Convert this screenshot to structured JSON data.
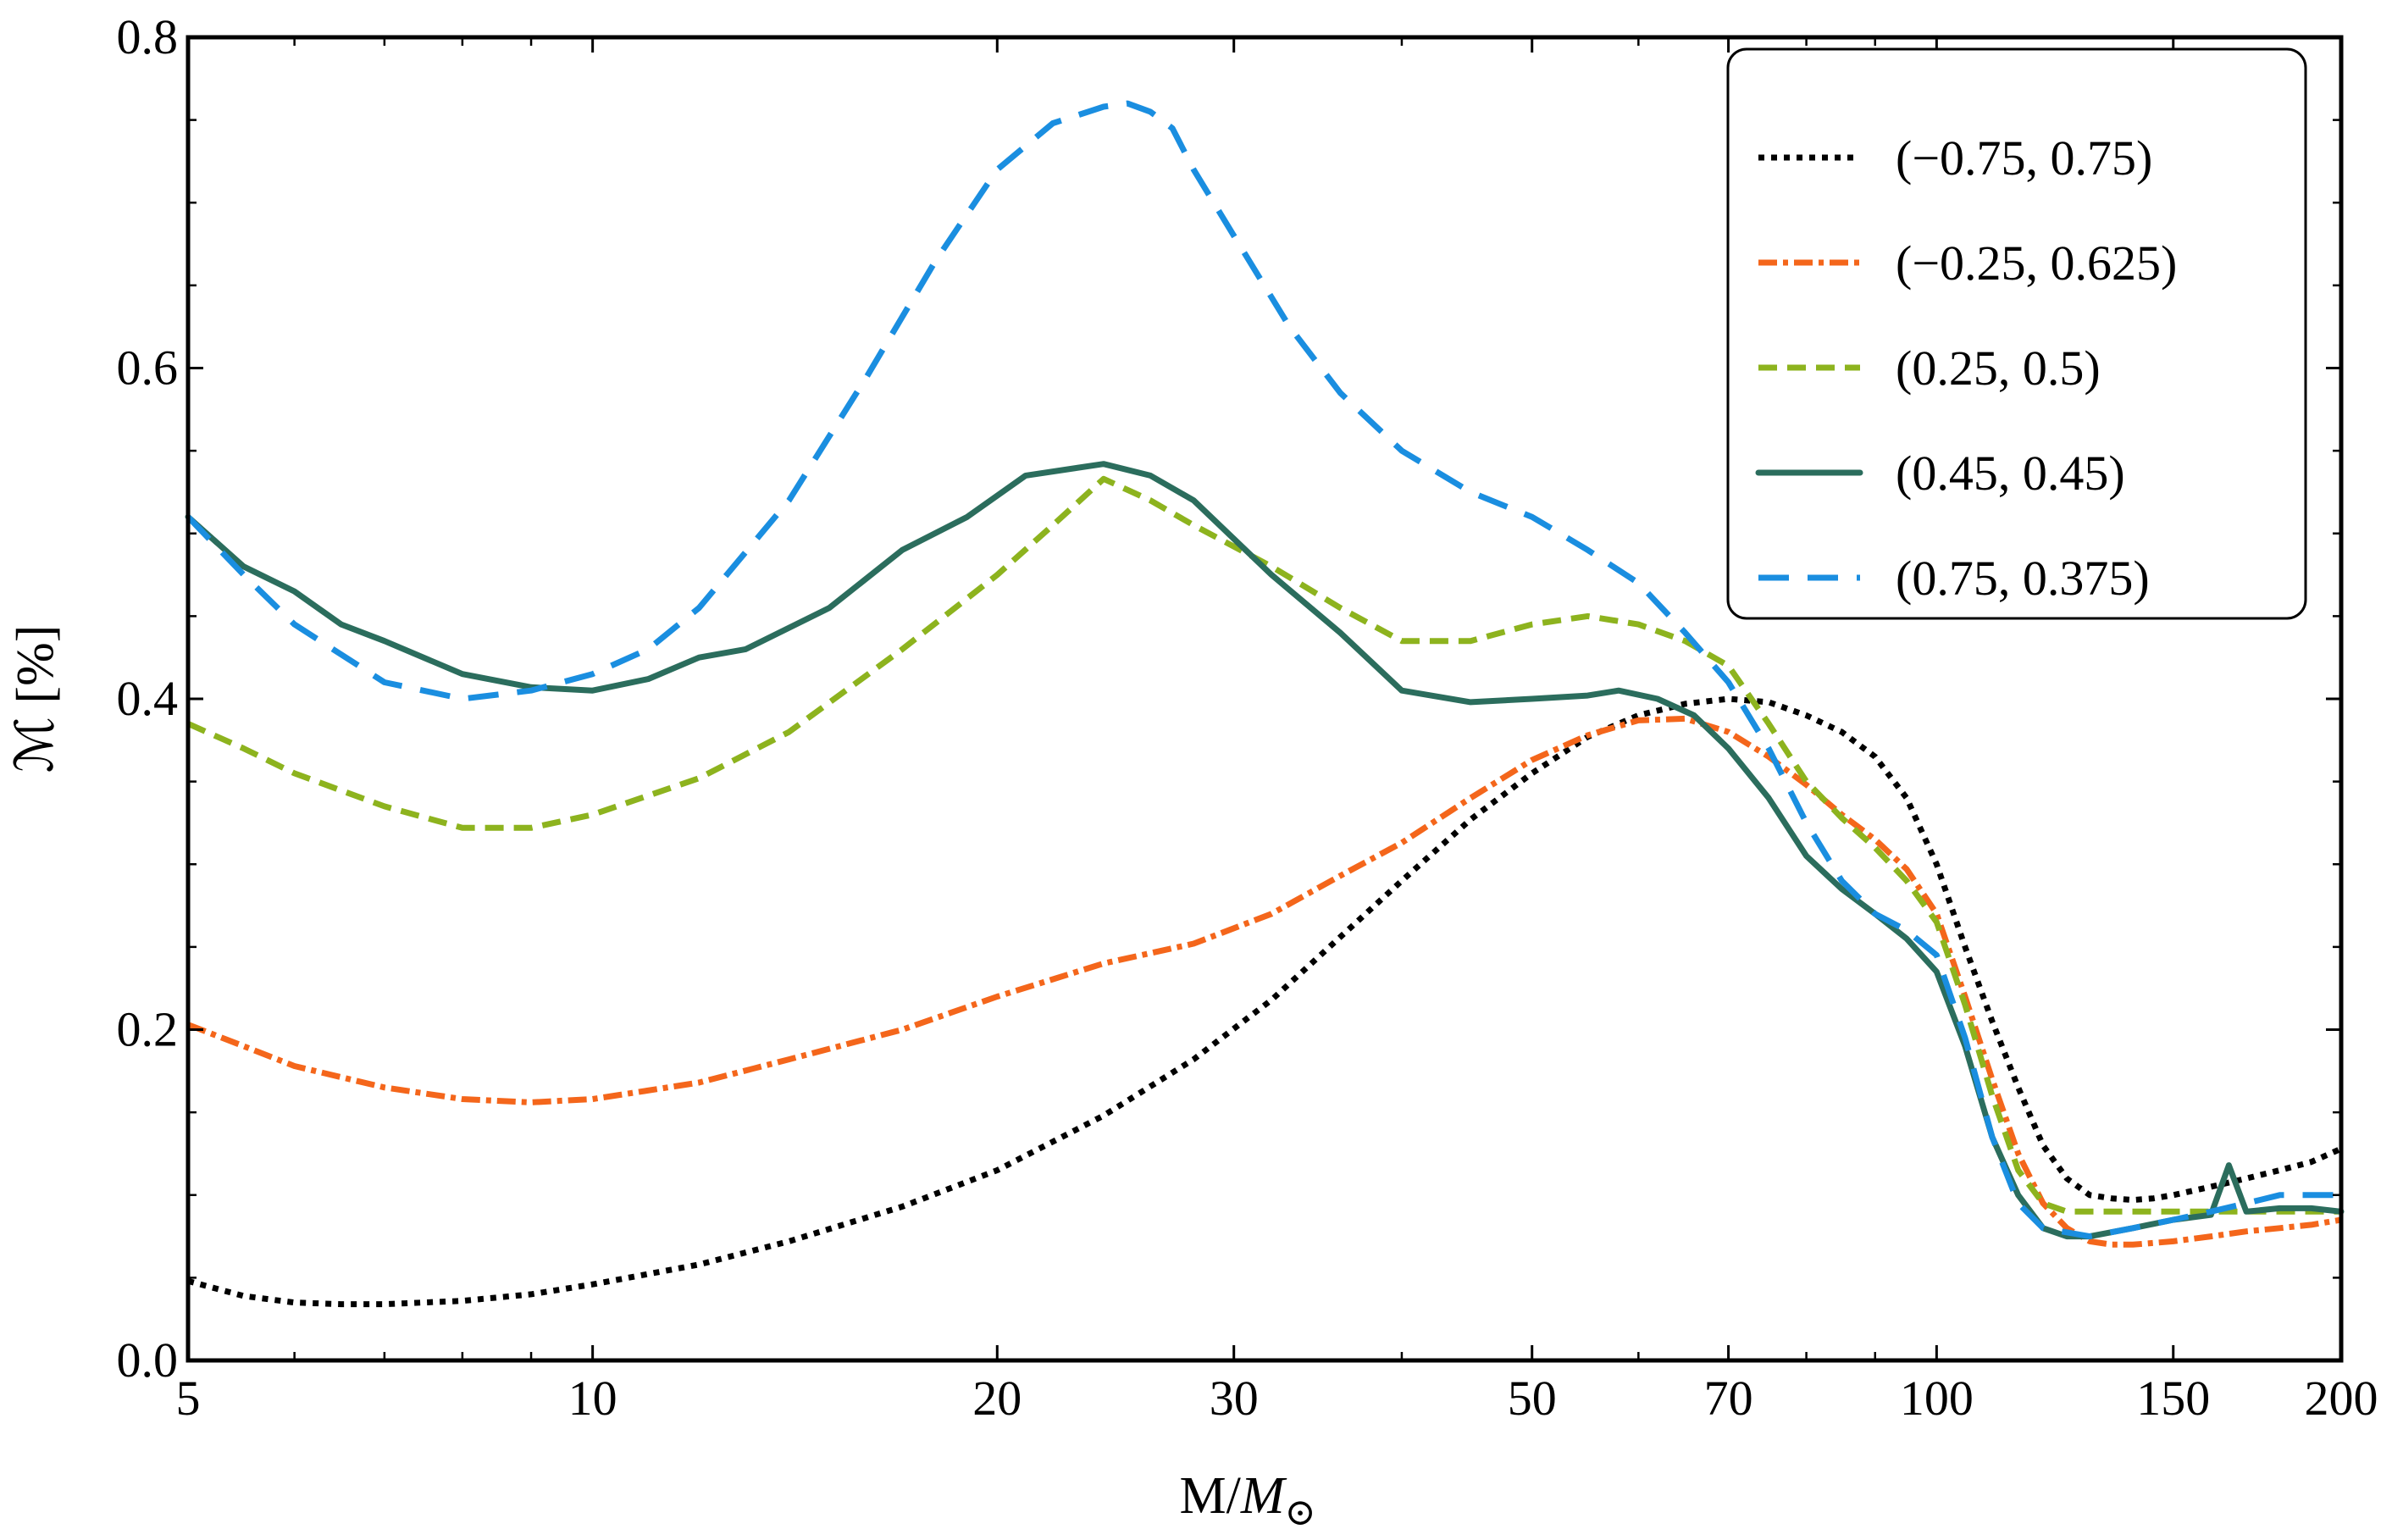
{
  "chart_data": {
    "type": "line",
    "title": "",
    "xlabel": "M/M_⊙",
    "xlabel_main": "M/",
    "xlabel_italic": "M",
    "xlabel_sub": "⊙",
    "ylabel": "ℳ [%]",
    "xscale": "log",
    "xlim": [
      5,
      200
    ],
    "ylim": [
      0.0,
      0.8
    ],
    "grid": false,
    "legend_position": "top-right",
    "xticks": [
      5,
      10,
      20,
      30,
      50,
      70,
      100,
      150,
      200
    ],
    "xtick_labels": [
      "5",
      "10",
      "20",
      "30",
      "50",
      "70",
      "100",
      "150",
      "200"
    ],
    "yticks": [
      0.0,
      0.2,
      0.4,
      0.6,
      0.8
    ],
    "ytick_labels": [
      "0.0",
      "0.2",
      "0.4",
      "0.6",
      "0.8"
    ],
    "series": [
      {
        "name": "(−0.75, 0.75)",
        "color": "#000000",
        "dash": "dot",
        "x": [
          5,
          5.5,
          6,
          6.5,
          7,
          8,
          9,
          10,
          12,
          14,
          17,
          20,
          24,
          28,
          32,
          36,
          40,
          45,
          50,
          55,
          60,
          65,
          70,
          75,
          80,
          85,
          90,
          95,
          100,
          105,
          110,
          115,
          120,
          125,
          130,
          135,
          140,
          145,
          150,
          160,
          170,
          180,
          190,
          200
        ],
        "y": [
          0.048,
          0.039,
          0.035,
          0.034,
          0.034,
          0.036,
          0.04,
          0.046,
          0.058,
          0.072,
          0.093,
          0.115,
          0.148,
          0.182,
          0.218,
          0.256,
          0.29,
          0.327,
          0.355,
          0.377,
          0.39,
          0.397,
          0.4,
          0.398,
          0.39,
          0.38,
          0.365,
          0.34,
          0.3,
          0.25,
          0.205,
          0.165,
          0.13,
          0.11,
          0.1,
          0.098,
          0.097,
          0.098,
          0.1,
          0.105,
          0.11,
          0.115,
          0.12,
          0.128
        ]
      },
      {
        "name": "(−0.25, 0.625)",
        "color": "#f4661b",
        "dash": "dashdot",
        "x": [
          5,
          5.5,
          6,
          7,
          8,
          9,
          10,
          12,
          14,
          17,
          20,
          24,
          28,
          32,
          36,
          40,
          45,
          50,
          55,
          60,
          65,
          70,
          75,
          80,
          85,
          90,
          95,
          100,
          105,
          110,
          115,
          120,
          125,
          130,
          135,
          140,
          150,
          160,
          170,
          180,
          190,
          200
        ],
        "y": [
          0.203,
          0.19,
          0.178,
          0.165,
          0.158,
          0.156,
          0.158,
          0.168,
          0.182,
          0.2,
          0.22,
          0.24,
          0.252,
          0.27,
          0.293,
          0.313,
          0.34,
          0.363,
          0.378,
          0.387,
          0.388,
          0.38,
          0.365,
          0.348,
          0.33,
          0.315,
          0.297,
          0.27,
          0.22,
          0.17,
          0.125,
          0.095,
          0.08,
          0.072,
          0.07,
          0.07,
          0.072,
          0.075,
          0.078,
          0.08,
          0.082,
          0.085
        ]
      },
      {
        "name": "(0.25, 0.5)",
        "color": "#8db31e",
        "dash": "dash",
        "x": [
          5,
          5.5,
          6,
          7,
          8,
          9,
          10,
          12,
          14,
          17,
          20,
          22,
          24,
          26,
          28,
          32,
          36,
          40,
          45,
          50,
          55,
          60,
          65,
          70,
          75,
          80,
          85,
          90,
          95,
          100,
          105,
          110,
          115,
          120,
          125,
          130,
          140,
          150,
          160,
          170,
          180,
          190,
          200
        ],
        "y": [
          0.385,
          0.37,
          0.355,
          0.335,
          0.322,
          0.322,
          0.33,
          0.352,
          0.38,
          0.43,
          0.475,
          0.505,
          0.533,
          0.52,
          0.505,
          0.48,
          0.455,
          0.435,
          0.435,
          0.445,
          0.45,
          0.445,
          0.435,
          0.42,
          0.385,
          0.35,
          0.328,
          0.31,
          0.29,
          0.265,
          0.215,
          0.16,
          0.115,
          0.095,
          0.09,
          0.09,
          0.09,
          0.09,
          0.09,
          0.09,
          0.09,
          0.09,
          0.09
        ]
      },
      {
        "name": "(0.45, 0.45)",
        "color": "#2b6d5d",
        "dash": "solid",
        "x": [
          5,
          5.5,
          6,
          6.5,
          7,
          8,
          9,
          10,
          11,
          12,
          13,
          15,
          17,
          19,
          21,
          24,
          26,
          28,
          32,
          36,
          40,
          45,
          50,
          55,
          58,
          62,
          66,
          70,
          75,
          80,
          85,
          90,
          95,
          100,
          105,
          110,
          115,
          120,
          125,
          130,
          140,
          150,
          160,
          165,
          170,
          180,
          190,
          200
        ],
        "y": [
          0.51,
          0.48,
          0.465,
          0.445,
          0.435,
          0.415,
          0.407,
          0.405,
          0.412,
          0.425,
          0.43,
          0.455,
          0.49,
          0.51,
          0.535,
          0.542,
          0.535,
          0.52,
          0.475,
          0.44,
          0.405,
          0.398,
          0.4,
          0.402,
          0.405,
          0.4,
          0.39,
          0.37,
          0.34,
          0.305,
          0.285,
          0.27,
          0.255,
          0.235,
          0.19,
          0.135,
          0.1,
          0.08,
          0.075,
          0.075,
          0.08,
          0.085,
          0.088,
          0.118,
          0.09,
          0.092,
          0.092,
          0.09
        ]
      },
      {
        "name": "(0.75, 0.375)",
        "color": "#1a8ee0",
        "dash": "longdash",
        "x": [
          5,
          5.5,
          6,
          7,
          8,
          9,
          10,
          11,
          12,
          14,
          16,
          18,
          20,
          22,
          24,
          25,
          26,
          27,
          28,
          30,
          33,
          36,
          40,
          45,
          50,
          55,
          60,
          65,
          70,
          75,
          80,
          85,
          90,
          95,
          100,
          105,
          110,
          115,
          120,
          130,
          140,
          150,
          160,
          170,
          180,
          190,
          200
        ],
        "y": [
          0.51,
          0.475,
          0.445,
          0.41,
          0.4,
          0.405,
          0.415,
          0.43,
          0.455,
          0.52,
          0.595,
          0.665,
          0.72,
          0.748,
          0.758,
          0.76,
          0.755,
          0.745,
          0.72,
          0.68,
          0.625,
          0.585,
          0.55,
          0.525,
          0.51,
          0.49,
          0.47,
          0.44,
          0.41,
          0.37,
          0.325,
          0.29,
          0.27,
          0.26,
          0.245,
          0.195,
          0.135,
          0.095,
          0.08,
          0.075,
          0.08,
          0.085,
          0.09,
          0.095,
          0.1,
          0.1,
          0.1
        ]
      }
    ]
  }
}
